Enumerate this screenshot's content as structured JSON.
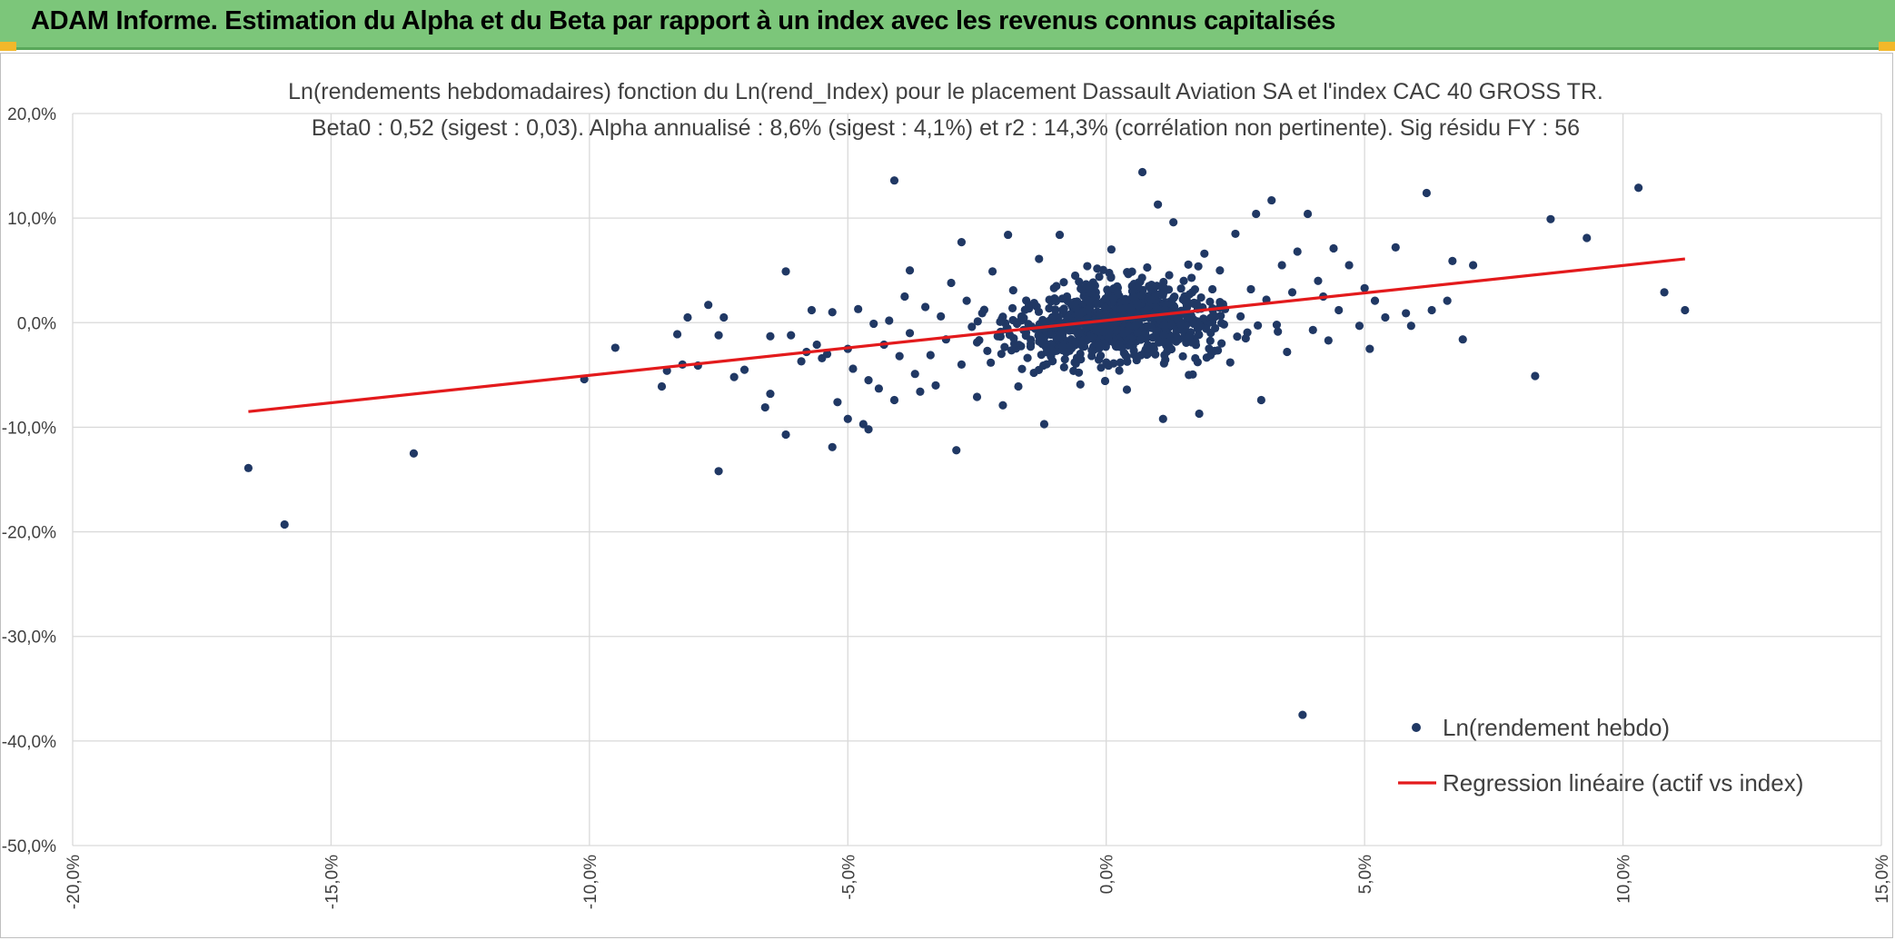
{
  "header": {
    "title": "ADAM Informe. Estimation du Alpha et du Beta par rapport à un index avec les revenus connus capitalisés"
  },
  "colors": {
    "banner": "#7cc67a",
    "points": "#203864",
    "regression": "#e31a1c",
    "grid": "#d9d9d9",
    "text": "#404040"
  },
  "chart_data": {
    "type": "scatter",
    "title": "Ln(rendements hebdomadaires) fonction du Ln(rend_Index) pour le placement Dassault Aviation SA et l'index CAC 40 GROSS TR.",
    "subtitle": "Beta0 : 0,52 (sigest : 0,03). Alpha annualisé : 8,6% (sigest : 4,1%) et r2 : 14,3% (corrélation non pertinente). Sig résidu FY : 56",
    "xlabel": "",
    "ylabel": "",
    "xlim": [
      -0.2,
      0.15
    ],
    "ylim": [
      -0.5,
      0.2
    ],
    "x_ticks": [
      -0.2,
      -0.15,
      -0.1,
      -0.05,
      0.0,
      0.05,
      0.1,
      0.15
    ],
    "x_tick_labels": [
      "-20,0%",
      "-15,0%",
      "-10,0%",
      "-5,0%",
      "0,0%",
      "5,0%",
      "10,0%",
      "15,0%"
    ],
    "y_ticks": [
      0.2,
      0.1,
      0.0,
      -0.1,
      -0.2,
      -0.3,
      -0.4,
      -0.5
    ],
    "y_tick_labels": [
      "20,0%",
      "10,0%",
      "0,0%",
      "-10,0%",
      "-20,0%",
      "-30,0%",
      "-40,0%",
      "-50,0%"
    ],
    "grid": true,
    "legend_position": "bottom-right",
    "series": [
      {
        "name": "Ln(rendement hebdo)",
        "kind": "scatter",
        "color": "#203864",
        "note_cluster": "dense cloud of weekly points centred near (0.0, 0.0), mostly between x -0.05..0.05 and y -0.10..0.10",
        "points": [
          [
            -0.166,
            -0.139
          ],
          [
            -0.159,
            -0.193
          ],
          [
            -0.134,
            -0.125
          ],
          [
            -0.101,
            -0.054
          ],
          [
            -0.095,
            -0.024
          ],
          [
            -0.086,
            -0.061
          ],
          [
            -0.085,
            -0.046
          ],
          [
            -0.083,
            -0.011
          ],
          [
            -0.082,
            -0.04
          ],
          [
            -0.081,
            0.005
          ],
          [
            -0.079,
            -0.041
          ],
          [
            -0.077,
            0.017
          ],
          [
            -0.075,
            -0.012
          ],
          [
            -0.075,
            -0.142
          ],
          [
            -0.074,
            0.005
          ],
          [
            -0.072,
            -0.052
          ],
          [
            -0.07,
            -0.045
          ],
          [
            -0.066,
            -0.081
          ],
          [
            -0.065,
            -0.068
          ],
          [
            -0.065,
            -0.013
          ],
          [
            -0.062,
            0.049
          ],
          [
            -0.062,
            -0.107
          ],
          [
            -0.061,
            -0.012
          ],
          [
            -0.059,
            -0.037
          ],
          [
            -0.058,
            -0.028
          ],
          [
            -0.057,
            0.012
          ],
          [
            -0.056,
            -0.021
          ],
          [
            -0.055,
            -0.034
          ],
          [
            -0.054,
            -0.03
          ],
          [
            -0.053,
            0.01
          ],
          [
            -0.053,
            -0.119
          ],
          [
            -0.052,
            -0.076
          ],
          [
            -0.05,
            -0.092
          ],
          [
            -0.05,
            -0.025
          ],
          [
            -0.049,
            -0.044
          ],
          [
            -0.048,
            0.013
          ],
          [
            -0.047,
            -0.097
          ],
          [
            -0.046,
            -0.102
          ],
          [
            -0.046,
            -0.055
          ],
          [
            -0.045,
            -0.001
          ],
          [
            -0.044,
            -0.063
          ],
          [
            -0.043,
            -0.021
          ],
          [
            -0.042,
            0.002
          ],
          [
            -0.041,
            0.136
          ],
          [
            -0.041,
            -0.074
          ],
          [
            -0.04,
            -0.032
          ],
          [
            -0.039,
            0.025
          ],
          [
            -0.038,
            0.05
          ],
          [
            -0.038,
            -0.01
          ],
          [
            -0.037,
            -0.049
          ],
          [
            -0.036,
            -0.066
          ],
          [
            -0.035,
            0.015
          ],
          [
            -0.034,
            -0.031
          ],
          [
            -0.033,
            -0.06
          ],
          [
            -0.032,
            0.006
          ],
          [
            -0.031,
            -0.016
          ],
          [
            -0.03,
            0.038
          ],
          [
            -0.029,
            -0.122
          ],
          [
            -0.028,
            -0.04
          ],
          [
            -0.028,
            0.077
          ],
          [
            -0.027,
            0.021
          ],
          [
            -0.026,
            -0.004
          ],
          [
            -0.025,
            -0.071
          ],
          [
            -0.024,
            0.009
          ],
          [
            -0.023,
            -0.027
          ],
          [
            -0.022,
            0.049
          ],
          [
            -0.021,
            -0.013
          ],
          [
            -0.02,
            -0.079
          ],
          [
            -0.019,
            0.084
          ],
          [
            -0.018,
            0.031
          ],
          [
            -0.017,
            -0.061
          ],
          [
            -0.016,
            -0.007
          ],
          [
            -0.015,
            0.014
          ],
          [
            -0.014,
            -0.048
          ],
          [
            -0.013,
            0.061
          ],
          [
            -0.012,
            -0.097
          ],
          [
            -0.011,
            0.022
          ],
          [
            -0.01,
            -0.021
          ],
          [
            -0.009,
            0.084
          ],
          [
            -0.008,
            -0.035
          ],
          [
            -0.007,
            0.008
          ],
          [
            -0.006,
            0.045
          ],
          [
            -0.005,
            -0.059
          ],
          [
            -0.004,
            0.016
          ],
          [
            -0.003,
            -0.011
          ],
          [
            -0.002,
            0.029
          ],
          [
            -0.001,
            -0.043
          ],
          [
            0.0,
            0.004
          ],
          [
            0.001,
            0.07
          ],
          [
            0.002,
            -0.023
          ],
          [
            0.003,
            0.013
          ],
          [
            0.004,
            -0.064
          ],
          [
            0.005,
            0.035
          ],
          [
            0.006,
            -0.004
          ],
          [
            0.007,
            0.144
          ],
          [
            0.008,
            -0.03
          ],
          [
            0.009,
            0.023
          ],
          [
            0.01,
            0.113
          ],
          [
            0.011,
            -0.092
          ],
          [
            0.012,
            0.008
          ],
          [
            0.013,
            0.096
          ],
          [
            0.014,
            -0.016
          ],
          [
            0.015,
            0.04
          ],
          [
            0.016,
            -0.05
          ],
          [
            0.017,
            0.019
          ],
          [
            0.018,
            -0.087
          ],
          [
            0.019,
            0.066
          ],
          [
            0.02,
            0.002
          ],
          [
            0.021,
            -0.027
          ],
          [
            0.022,
            0.05
          ],
          [
            0.023,
            0.013
          ],
          [
            0.024,
            -0.038
          ],
          [
            0.025,
            0.085
          ],
          [
            0.026,
            0.006
          ],
          [
            0.027,
            -0.015
          ],
          [
            0.028,
            0.032
          ],
          [
            0.029,
            0.104
          ],
          [
            0.03,
            -0.074
          ],
          [
            0.031,
            0.022
          ],
          [
            0.032,
            0.117
          ],
          [
            0.033,
            -0.002
          ],
          [
            0.034,
            0.055
          ],
          [
            0.035,
            -0.028
          ],
          [
            0.036,
            0.029
          ],
          [
            0.037,
            0.068
          ],
          [
            0.038,
            -0.375
          ],
          [
            0.039,
            0.104
          ],
          [
            0.04,
            -0.007
          ],
          [
            0.041,
            0.04
          ],
          [
            0.042,
            0.025
          ],
          [
            0.043,
            -0.017
          ],
          [
            0.044,
            0.071
          ],
          [
            0.045,
            0.012
          ],
          [
            0.047,
            0.055
          ],
          [
            0.049,
            -0.003
          ],
          [
            0.05,
            0.033
          ],
          [
            0.051,
            -0.025
          ],
          [
            0.052,
            0.021
          ],
          [
            0.054,
            0.005
          ],
          [
            0.056,
            0.072
          ],
          [
            0.058,
            0.009
          ],
          [
            0.059,
            -0.003
          ],
          [
            0.062,
            0.124
          ],
          [
            0.063,
            0.012
          ],
          [
            0.066,
            0.021
          ],
          [
            0.067,
            0.059
          ],
          [
            0.069,
            -0.016
          ],
          [
            0.071,
            0.055
          ],
          [
            0.083,
            -0.051
          ],
          [
            0.086,
            0.099
          ],
          [
            0.093,
            0.081
          ],
          [
            0.103,
            0.129
          ],
          [
            0.108,
            0.029
          ],
          [
            0.112,
            0.012
          ]
        ]
      },
      {
        "name": "Regression linéaire (actif vs index)",
        "kind": "line",
        "color": "#e31a1c",
        "x": [
          -0.166,
          0.112
        ],
        "y": [
          -0.085,
          0.061
        ]
      }
    ]
  }
}
